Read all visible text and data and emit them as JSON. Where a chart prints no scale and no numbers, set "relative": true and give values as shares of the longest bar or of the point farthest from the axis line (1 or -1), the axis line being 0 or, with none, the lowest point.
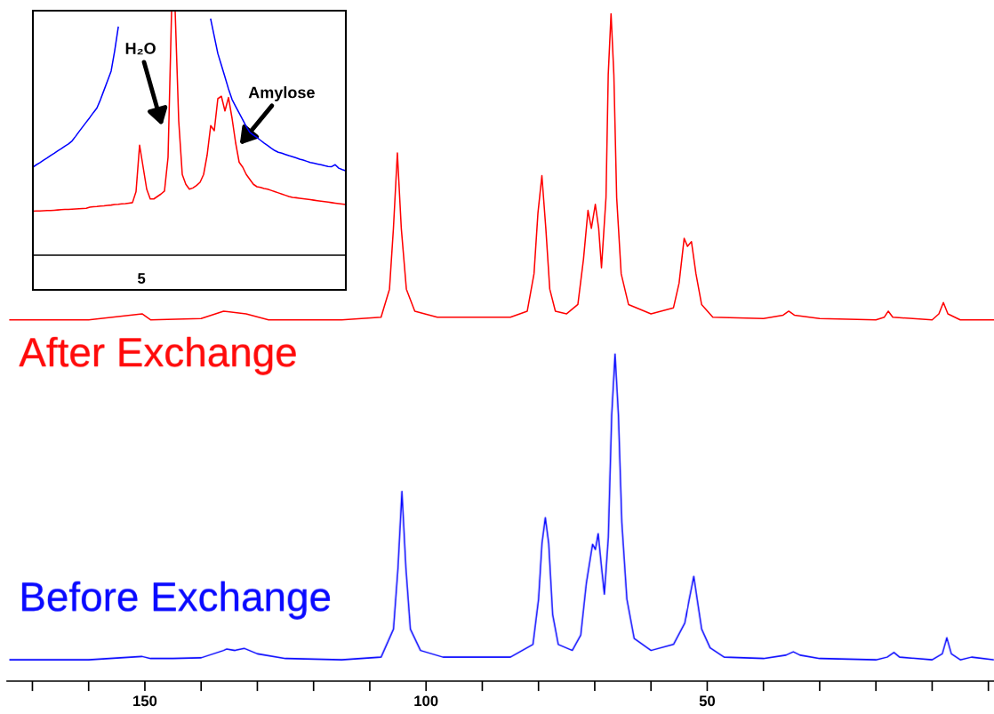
{
  "chart_data": [
    {
      "type": "line",
      "relative": true,
      "categories": [
        null,
        null,
        null,
        null,
        null,
        null,
        null,
        null,
        null,
        null,
        null,
        null,
        null,
        null,
        null,
        null,
        null,
        null,
        null,
        null,
        null,
        null,
        null,
        null,
        null,
        null,
        null,
        null,
        null,
        null,
        null,
        null,
        null,
        null,
        null,
        null,
        null,
        null,
        null,
        null,
        null,
        null,
        null,
        null,
        null,
        null,
        null,
        null,
        null,
        null,
        null,
        null,
        null,
        null,
        null,
        null,
        null,
        null,
        null,
        null,
        null,
        null,
        null,
        null,
        null,
        null,
        null,
        null,
        null,
        null,
        null,
        null,
        null,
        null,
        null,
        null,
        null,
        null,
        null,
        null,
        null,
        null,
        null,
        null,
        null,
        null,
        null,
        null,
        null
      ],
      "tick_labels": false,
      "grid": false,
      "series": [
        {
          "color": "#0000ff",
          "values": [
            0.36,
            0.37,
            0.379,
            0.389,
            0.398,
            0.408,
            0.417,
            0.427,
            0.436,
            0.446,
            0.455,
            0.467,
            0.486,
            0.506,
            0.525,
            0.544,
            0.563,
            0.583,
            0.602,
            0.636,
            0.675,
            0.714,
            0.753,
            0.836,
            0.932,
            null,
            null,
            null,
            null,
            null,
            null,
            null,
            null,
            null,
            null,
            null,
            null,
            null,
            null,
            null,
            null,
            null,
            null,
            null,
            null,
            null,
            null,
            null,
            null,
            null,
            0.965,
            0.895,
            0.825,
            0.777,
            0.729,
            0.68,
            0.637,
            0.609,
            0.581,
            0.554,
            0.526,
            0.502,
            0.491,
            0.481,
            0.47,
            0.459,
            0.449,
            0.438,
            0.428,
            0.421,
            0.417,
            0.412,
            0.407,
            0.403,
            0.398,
            0.393,
            0.389,
            0.384,
            0.379,
            0.376,
            0.373,
            0.37,
            0.366,
            0.363,
            0.362,
            0.37,
            0.356,
            0.35,
            0.345
          ]
        },
        {
          "color": "#ff0000",
          "values": [
            0.18,
            0.181,
            0.181,
            0.182,
            0.183,
            0.183,
            0.184,
            0.185,
            0.186,
            0.187,
            0.187,
            0.188,
            0.189,
            0.19,
            0.191,
            0.192,
            0.196,
            0.198,
            0.199,
            0.201,
            0.202,
            0.204,
            0.205,
            0.207,
            0.208,
            0.21,
            0.211,
            0.213,
            0.215,
            0.26,
            0.45,
            0.36,
            0.27,
            0.23,
            0.23,
            0.24,
            0.25,
            0.262,
            0.4,
            1.0,
            1.0,
            0.55,
            0.33,
            0.29,
            0.27,
            0.275,
            0.285,
            0.298,
            0.33,
            0.41,
            0.53,
            0.509,
            0.64,
            0.65,
            0.59,
            0.645,
            0.56,
            0.46,
            0.38,
            0.36,
            0.33,
            0.31,
            0.29,
            0.28,
            0.277,
            0.273,
            0.27,
            0.265,
            0.26,
            0.255,
            0.25,
            0.245,
            0.24,
            0.236,
            0.235,
            0.233,
            0.231,
            0.229,
            0.227,
            0.225,
            0.223,
            0.221,
            0.219,
            0.217,
            0.215,
            0.213,
            0.211,
            0.209,
            0.207
          ]
        }
      ],
      "annotations": [
        "H₂O",
        "Amylose",
        "5"
      ]
    },
    {
      "type": "line",
      "relative": true,
      "xlim": [
        174.5,
        -1
      ],
      "xticks": [
        150,
        100,
        50
      ],
      "tick_labels": "x",
      "grid": false,
      "series": [
        {
          "name": "After Exchange",
          "color": "#ff0000",
          "x": [
            174,
            160,
            150.5,
            149,
            140,
            136,
            132,
            128,
            115,
            108,
            106.5,
            105.8,
            105.1,
            104.4,
            103.5,
            102,
            98,
            85,
            82,
            80.8,
            80.1,
            79.4,
            78.7,
            78,
            77,
            75,
            73,
            72,
            71.2,
            70.6,
            69.9,
            69.3,
            68.8,
            68.0,
            67.6,
            67.1,
            66.6,
            66.1,
            65.3,
            64,
            60,
            56,
            55,
            54.1,
            53.5,
            52.8,
            52,
            51,
            49,
            40,
            36.5,
            35.5,
            34.5,
            30,
            20,
            18.5,
            17.8,
            17,
            10,
            8.8,
            8.0,
            7.2,
            5,
            -1
          ],
          "values": [
            0.541,
            0.541,
            0.55,
            0.541,
            0.543,
            0.554,
            0.55,
            0.541,
            0.541,
            0.545,
            0.587,
            0.678,
            0.791,
            0.678,
            0.587,
            0.554,
            0.545,
            0.545,
            0.554,
            0.61,
            0.701,
            0.757,
            0.678,
            0.587,
            0.554,
            0.55,
            0.564,
            0.632,
            0.705,
            0.678,
            0.714,
            0.678,
            0.619,
            0.724,
            0.908,
            1.0,
            0.908,
            0.724,
            0.61,
            0.564,
            0.55,
            0.559,
            0.596,
            0.663,
            0.651,
            0.658,
            0.61,
            0.564,
            0.545,
            0.543,
            0.548,
            0.554,
            0.548,
            0.543,
            0.541,
            0.545,
            0.554,
            0.545,
            0.541,
            0.55,
            0.567,
            0.55,
            0.541,
            0.541
          ]
        },
        {
          "name": "Before Exchange",
          "color": "#0000ff",
          "x": [
            174,
            160,
            150.5,
            149,
            145,
            140,
            136,
            135.5,
            134,
            132.3,
            130,
            125,
            115,
            108,
            105.8,
            105,
            104.3,
            103.6,
            102.8,
            101,
            97,
            85,
            81,
            80,
            79.4,
            78.8,
            78.2,
            77.5,
            76.5,
            74,
            72.5,
            71.5,
            70.4,
            69.9,
            69.4,
            68.8,
            68.3,
            67.6,
            67,
            66.4,
            65.8,
            65.2,
            64.3,
            63,
            60,
            56,
            54,
            53.2,
            52.4,
            51.8,
            51,
            49.5,
            47,
            40,
            36,
            34.7,
            33.5,
            30,
            20,
            18,
            16.8,
            15.8,
            10,
            8.2,
            7.4,
            6.6,
            5,
            3,
            -1
          ],
          "values": [
            0.032,
            0.032,
            0.037,
            0.034,
            0.034,
            0.035,
            0.046,
            0.048,
            0.046,
            0.049,
            0.041,
            0.034,
            0.032,
            0.036,
            0.078,
            0.17,
            0.284,
            0.17,
            0.078,
            0.046,
            0.036,
            0.036,
            0.055,
            0.123,
            0.206,
            0.245,
            0.206,
            0.1,
            0.055,
            0.046,
            0.069,
            0.147,
            0.205,
            0.197,
            0.221,
            0.17,
            0.13,
            0.215,
            0.398,
            0.49,
            0.398,
            0.238,
            0.123,
            0.064,
            0.046,
            0.055,
            0.087,
            0.123,
            0.157,
            0.123,
            0.078,
            0.05,
            0.036,
            0.034,
            0.039,
            0.044,
            0.039,
            0.034,
            0.032,
            0.036,
            0.043,
            0.036,
            0.032,
            0.041,
            0.065,
            0.041,
            0.032,
            0.036,
            0.032
          ]
        }
      ]
    }
  ]
}
